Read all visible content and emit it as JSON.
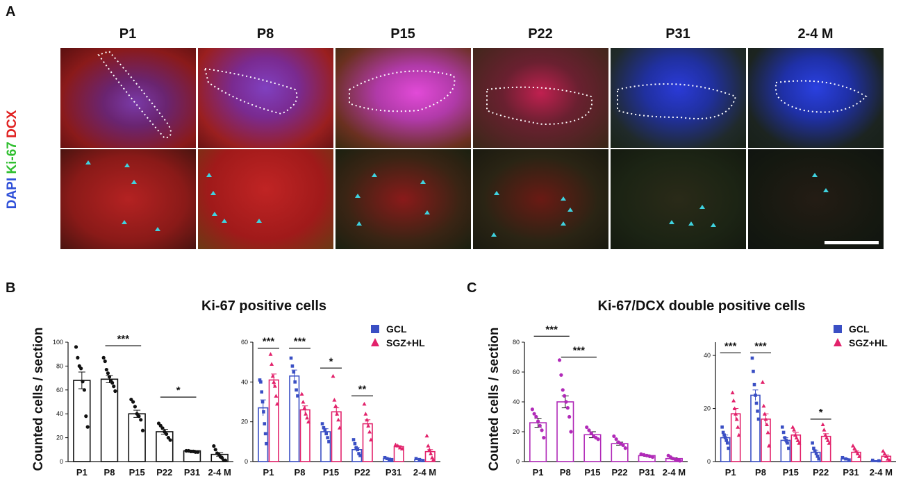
{
  "panels": {
    "a": "A",
    "b": "B",
    "c": "C"
  },
  "timepoints": [
    "P1",
    "P8",
    "P15",
    "P22",
    "P31",
    "2-4 M"
  ],
  "stain": {
    "dapi": "DAPI",
    "ki67": "Ki-67",
    "dcx": "DCX"
  },
  "colors": {
    "gcl": "#3a4fc4",
    "sgz": "#e2226b",
    "magenta": "#b12ab8",
    "black": "#111111",
    "dapi": "#2e4fd8",
    "ki67": "#2fbf2f",
    "dcx": "#e02020",
    "arrow": "#3fd3e0"
  },
  "chart_b": {
    "title": "Ki-67 positive cells",
    "ylabel": "Counted cells / section",
    "left": {
      "type": "bar",
      "categories": [
        "P1",
        "P8",
        "P15",
        "P22",
        "P31",
        "2-4 M"
      ],
      "values": [
        68,
        69,
        40,
        25,
        9,
        6
      ],
      "sem": [
        7,
        3,
        3,
        2,
        0.5,
        1.5
      ],
      "ylim": [
        0,
        100
      ],
      "yticks": [
        0,
        20,
        40,
        60,
        80,
        100
      ],
      "points": [
        [
          96,
          87,
          80,
          78,
          67,
          60,
          38,
          29
        ],
        [
          87,
          84,
          77,
          74,
          71,
          68,
          66,
          63,
          59
        ],
        [
          52,
          50,
          46,
          40,
          38,
          35,
          26
        ],
        [
          32,
          30,
          28,
          25,
          23,
          20,
          18
        ],
        [
          9,
          9,
          8.5,
          8.5,
          8,
          8
        ],
        [
          13,
          10,
          7,
          6,
          4,
          3,
          1,
          1
        ]
      ],
      "annotations": [
        {
          "between": [
            1,
            2
          ],
          "label": "***",
          "y": 97
        },
        {
          "between": [
            3,
            4
          ],
          "label": "*",
          "y": 54
        }
      ]
    },
    "right": {
      "type": "bar",
      "categories": [
        "P1",
        "P8",
        "P15",
        "P22",
        "P31",
        "2-4 M"
      ],
      "series": [
        {
          "name": "GCL",
          "values": [
            27,
            43,
            15,
            6,
            1.5,
            1
          ],
          "sem": [
            4,
            3,
            1.5,
            1,
            0.3,
            0.3
          ],
          "points": [
            [
              41,
              40,
              35,
              30,
              25,
              19,
              14,
              9
            ],
            [
              52,
              48,
              45,
              40,
              36,
              33
            ],
            [
              19,
              17,
              16,
              14,
              12,
              10
            ],
            [
              11,
              9,
              7,
              6,
              4,
              3
            ],
            [
              2,
              1.5,
              1,
              0.5
            ],
            [
              1.5,
              1,
              0.5
            ]
          ]
        },
        {
          "name": "SGZ+HL",
          "values": [
            41,
            26,
            25,
            19,
            7.5,
            5
          ],
          "sem": [
            3,
            2,
            2,
            2,
            0.5,
            1
          ],
          "points": [
            [
              54,
              49,
              43,
              40,
              38,
              33,
              29
            ],
            [
              34,
              30,
              27,
              24,
              22,
              20
            ],
            [
              43,
              31,
              28,
              24,
              21,
              17
            ],
            [
              29,
              24,
              21,
              18,
              15,
              11
            ],
            [
              8.5,
              8,
              7,
              6.5
            ],
            [
              13,
              8,
              6,
              4,
              2,
              1
            ]
          ]
        }
      ],
      "ylim": [
        0,
        60
      ],
      "yticks": [
        0,
        20,
        40,
        60
      ],
      "annotations": [
        {
          "between": [
            0,
            0
          ],
          "label": "***",
          "y": 57
        },
        {
          "between": [
            1,
            1
          ],
          "label": "***",
          "y": 57
        },
        {
          "between": [
            2,
            2
          ],
          "label": "*",
          "y": 47
        },
        {
          "between": [
            3,
            3
          ],
          "label": "**",
          "y": 33
        }
      ]
    },
    "legend": [
      "GCL",
      "SGZ+HL"
    ]
  },
  "chart_c": {
    "title": "Ki-67/DCX double positive cells",
    "ylabel": "Counted cells / section",
    "left": {
      "type": "bar",
      "categories": [
        "P1",
        "P8",
        "P15",
        "P22",
        "P31",
        "2-4 M"
      ],
      "values": [
        26,
        40,
        18,
        12,
        4,
        2
      ],
      "sem": [
        3,
        4,
        2,
        1,
        0.5,
        0.5
      ],
      "ylim": [
        0,
        80
      ],
      "yticks": [
        0,
        20,
        40,
        60,
        80
      ],
      "points": [
        [
          35,
          32,
          30,
          27,
          24,
          21,
          16
        ],
        [
          68,
          58,
          48,
          44,
          40,
          36,
          30,
          20
        ],
        [
          23,
          21,
          19,
          17,
          16,
          15
        ],
        [
          17,
          15,
          13,
          12,
          11,
          9
        ],
        [
          5,
          4.5,
          4,
          3.5,
          3
        ],
        [
          4,
          3,
          2,
          1.5,
          1,
          0.5
        ]
      ],
      "annotations": [
        {
          "between": [
            0,
            1
          ],
          "label": "***",
          "y": 84
        },
        {
          "between": [
            1,
            2
          ],
          "label": "***",
          "y": 70
        }
      ]
    },
    "right": {
      "type": "bar",
      "categories": [
        "P1",
        "P8",
        "P15",
        "P22",
        "P31",
        "2-4 M"
      ],
      "series": [
        {
          "name": "GCL",
          "values": [
            9,
            25,
            8,
            3.5,
            1,
            0.3
          ],
          "sem": [
            1,
            2,
            1,
            0.8,
            0.2,
            0.1
          ],
          "points": [
            [
              13,
              11,
              10,
              9,
              8,
              7,
              5
            ],
            [
              39,
              34,
              29,
              25,
              22,
              19,
              16
            ],
            [
              13,
              11,
              9,
              8,
              7,
              5
            ],
            [
              7,
              5,
              4,
              3,
              2,
              1
            ],
            [
              1.5,
              1,
              0.5
            ],
            [
              0.5,
              0.3
            ]
          ]
        },
        {
          "name": "SGZ+HL",
          "values": [
            18,
            16,
            10,
            9.5,
            3.5,
            2
          ],
          "sem": [
            2,
            2,
            1,
            1,
            0.5,
            0.5
          ],
          "points": [
            [
              26,
              23,
              20,
              18,
              16,
              13,
              10
            ],
            [
              30,
              21,
              18,
              16,
              14,
              11,
              6
            ],
            [
              13,
              12,
              10,
              9,
              8,
              7
            ],
            [
              14,
              12,
              10,
              9,
              8,
              7
            ],
            [
              6,
              5,
              4,
              3,
              2
            ],
            [
              4,
              3,
              2,
              1,
              0.5
            ]
          ]
        }
      ],
      "ylim": [
        0,
        45
      ],
      "yticks": [
        0,
        20,
        40
      ],
      "annotations": [
        {
          "between": [
            0,
            0
          ],
          "label": "***",
          "y": 41
        },
        {
          "between": [
            1,
            1
          ],
          "label": "***",
          "y": 41
        },
        {
          "between": [
            3,
            3
          ],
          "label": "*",
          "y": 16
        }
      ]
    },
    "legend": [
      "GCL",
      "SGZ+HL"
    ]
  }
}
